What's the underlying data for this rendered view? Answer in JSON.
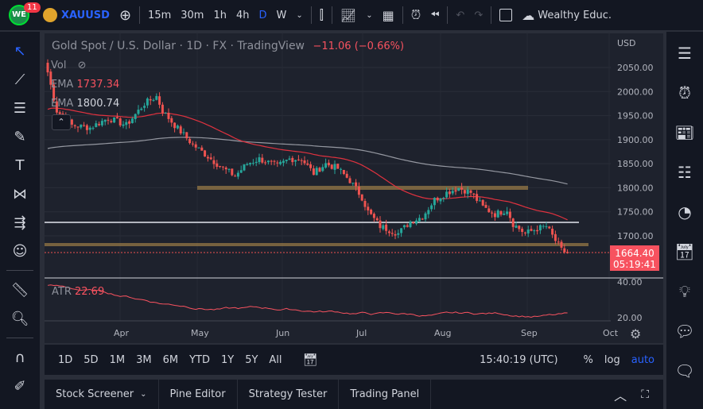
{
  "topbar": {
    "badge": "11",
    "symbol": "XAUUSD",
    "intervals": [
      "15m",
      "30m",
      "1h",
      "4h",
      "D",
      "W"
    ],
    "active_interval": "D",
    "account": "Wealthy Educ."
  },
  "legend": {
    "title": "Gold Spot / U.S. Dollar · 1D · FX · TradingView",
    "change": "−11.06 (−0.66%)",
    "vol": "Vol",
    "ema1_label": "EMA",
    "ema1_value": "1737.34",
    "ema2_label": "EMA",
    "ema2_value": "1800.74",
    "atr_label": "ATR",
    "atr_value": "22.69"
  },
  "price_axis": {
    "currency": "USD",
    "ticks": [
      "2050.00",
      "2000.00",
      "1950.00",
      "1900.00",
      "1850.00",
      "1800.00",
      "1750.00",
      "1700.00"
    ],
    "last_price": "1664.40",
    "countdown": "05:19:41",
    "atr_ticks": [
      "40.00",
      "20.00"
    ]
  },
  "time_axis": [
    "Apr",
    "May",
    "Jun",
    "Jul",
    "Aug",
    "Sep",
    "Oct"
  ],
  "bottombar": {
    "ranges": [
      "1D",
      "5D",
      "1M",
      "3M",
      "6M",
      "YTD",
      "1Y",
      "5Y",
      "All"
    ],
    "time": "15:40:19 (UTC)",
    "percent": "%",
    "log": "log",
    "auto": "auto"
  },
  "panel": {
    "tabs": [
      "Stock Screener",
      "Pine Editor",
      "Strategy Tester",
      "Trading Panel"
    ]
  },
  "colors": {
    "up": "#26a69a",
    "down": "#ef5350",
    "ema_fast": "#e0323f",
    "ema_slow": "#9598a1",
    "accent": "#2962ff"
  },
  "chart_data": {
    "type": "candlestick",
    "symbol": "XAUUSD",
    "ylim": [
      1640,
      2080
    ],
    "close_waypoints": [
      [
        0,
        2040
      ],
      [
        3,
        1960
      ],
      [
        8,
        1930
      ],
      [
        14,
        1925
      ],
      [
        20,
        1945
      ],
      [
        26,
        1930
      ],
      [
        32,
        1975
      ],
      [
        36,
        1990
      ],
      [
        38,
        1960
      ],
      [
        42,
        1930
      ],
      [
        48,
        1890
      ],
      [
        54,
        1860
      ],
      [
        58,
        1840
      ],
      [
        62,
        1825
      ],
      [
        66,
        1850
      ],
      [
        70,
        1860
      ],
      [
        76,
        1845
      ],
      [
        80,
        1860
      ],
      [
        84,
        1860
      ],
      [
        88,
        1830
      ],
      [
        92,
        1850
      ],
      [
        96,
        1840
      ],
      [
        100,
        1815
      ],
      [
        104,
        1780
      ],
      [
        106,
        1750
      ],
      [
        110,
        1720
      ],
      [
        114,
        1710
      ],
      [
        116,
        1705
      ],
      [
        120,
        1730
      ],
      [
        124,
        1740
      ],
      [
        128,
        1775
      ],
      [
        132,
        1790
      ],
      [
        136,
        1800
      ],
      [
        140,
        1790
      ],
      [
        144,
        1760
      ],
      [
        148,
        1745
      ],
      [
        152,
        1755
      ],
      [
        154,
        1725
      ],
      [
        158,
        1705
      ],
      [
        162,
        1715
      ],
      [
        165,
        1720
      ],
      [
        168,
        1690
      ],
      [
        170,
        1670
      ],
      [
        172,
        1664
      ]
    ],
    "levels": [
      1800,
      1727,
      1683
    ],
    "atr_last": 22.69
  }
}
